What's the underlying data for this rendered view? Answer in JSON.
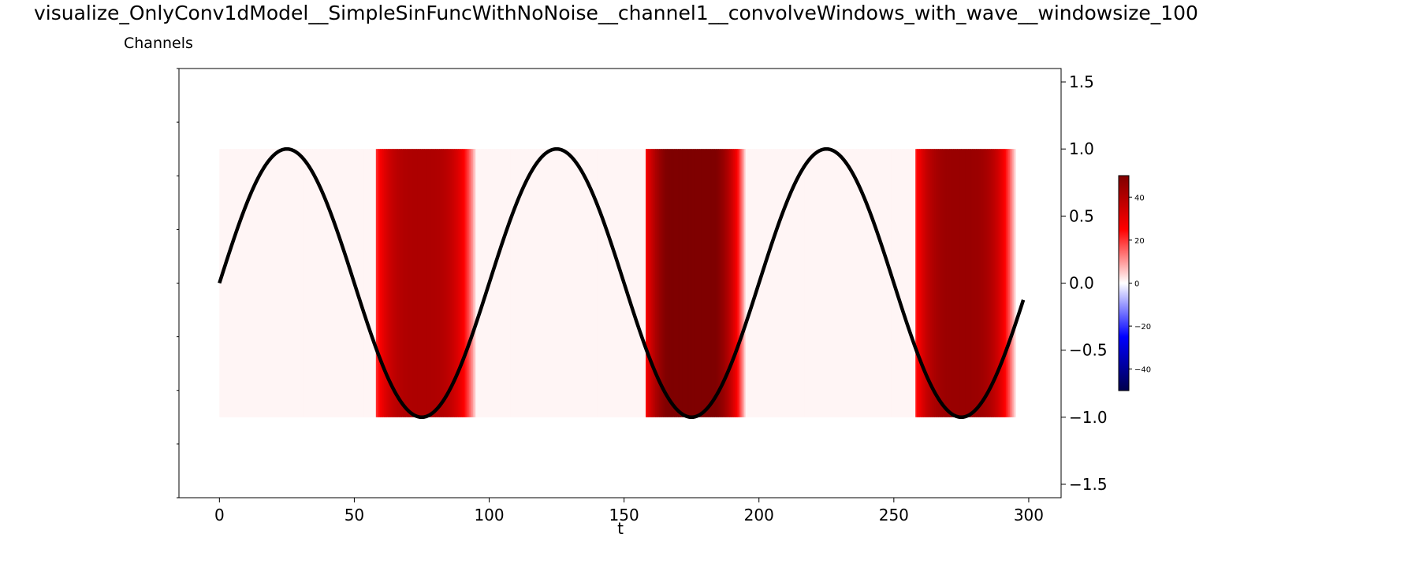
{
  "figure_title": "visualize_OnlyConv1dModel__SimpleSinFuncWithNoNoise__channel1__convolveWindows_with_wave__windowsize_100",
  "chart_data": {
    "type": "heatmap",
    "title": "Channels",
    "xlabel": "t",
    "ylabel": "",
    "xlim": [
      -15,
      312
    ],
    "ylim": [
      -1.6,
      1.6
    ],
    "y_axis_side": "right",
    "x_ticks": [
      0,
      50,
      100,
      150,
      200,
      250,
      300
    ],
    "y_ticks": [
      1.5,
      1.0,
      0.5,
      0.0,
      -0.5,
      -1.0,
      -1.5
    ],
    "y_tick_labels": [
      "1.5",
      "1.0",
      "0.5",
      "0.0",
      "−0.5",
      "−1.0",
      "−1.5"
    ],
    "heatmap": {
      "x_range": [
        0,
        295
      ],
      "y_range": [
        -1.0,
        1.0
      ],
      "background_value": 1,
      "bands": [
        {
          "t_start": 58,
          "t_end": 95,
          "t_center": 75,
          "peak_value": 38
        },
        {
          "t_start": 158,
          "t_end": 195,
          "t_center": 175,
          "peak_value": 50
        },
        {
          "t_start": 258,
          "t_end": 295,
          "t_center": 275,
          "peak_value": 42
        }
      ]
    },
    "series": [
      {
        "type": "line",
        "function": "sin(2*pi*t/100)",
        "t_range": [
          0,
          298
        ],
        "color": "#000000"
      }
    ],
    "colorbar": {
      "range": [
        -50,
        50
      ],
      "ticks": [
        40,
        20,
        0,
        -20,
        -40
      ],
      "tick_labels": [
        "40",
        "20",
        "0",
        "−20",
        "−40"
      ],
      "colormap": "seismic",
      "colors": [
        "#00004c",
        "#0000ff",
        "#ffffff",
        "#ff0000",
        "#7f0000"
      ]
    },
    "grid": false,
    "legend": "none"
  }
}
